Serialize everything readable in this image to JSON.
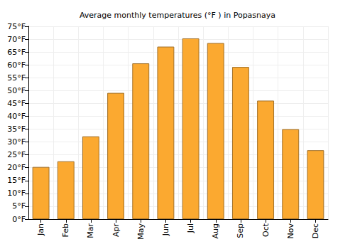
{
  "chart_data": {
    "type": "bar",
    "title": "Average monthly temperatures (°F ) in Popasnaya",
    "categories": [
      "Jan",
      "Feb",
      "Mar",
      "Apr",
      "May",
      "Jun",
      "Jul",
      "Aug",
      "Sep",
      "Oct",
      "Nov",
      "Dec"
    ],
    "values": [
      20.3,
      22.5,
      32.2,
      49.1,
      60.6,
      67.1,
      70.3,
      68.5,
      59.2,
      46.1,
      35.0,
      26.8
    ],
    "color": "#fba930",
    "ylim": [
      0,
      75
    ],
    "yticks": [
      {
        "value": 0,
        "label": "0°F"
      },
      {
        "value": 5,
        "label": "5°F"
      },
      {
        "value": 10,
        "label": "10°F"
      },
      {
        "value": 15,
        "label": "15°F"
      },
      {
        "value": 20,
        "label": "20°F"
      },
      {
        "value": 25,
        "label": "25°F"
      },
      {
        "value": 30,
        "label": "30°F"
      },
      {
        "value": 35,
        "label": "35°F"
      },
      {
        "value": 40,
        "label": "40°F"
      },
      {
        "value": 45,
        "label": "45°F"
      },
      {
        "value": 50,
        "label": "50°F"
      },
      {
        "value": 55,
        "label": "55°F"
      },
      {
        "value": 60,
        "label": "60°F"
      },
      {
        "value": 65,
        "label": "65°F"
      },
      {
        "value": 70,
        "label": "70°F"
      },
      {
        "value": 75,
        "label": "75°F"
      }
    ],
    "grid": true
  }
}
